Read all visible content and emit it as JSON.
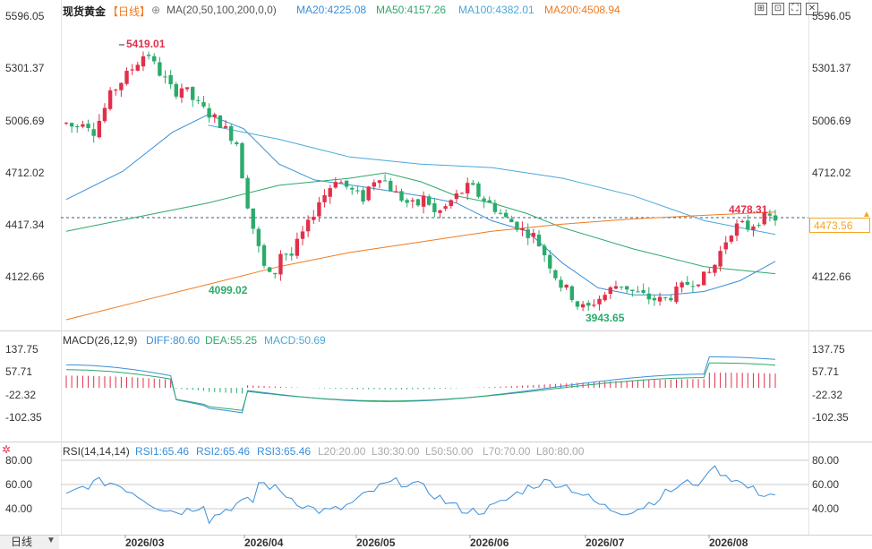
{
  "header": {
    "symbol": "现货黄金",
    "period_label": "【日线】",
    "ma_label": "MA(20,50,100,200,0,0)",
    "ma20": "MA20:4225.08",
    "ma50": "MA50:4157.26",
    "ma100": "MA100:4382.01",
    "ma200": "MA200:4508.94"
  },
  "colors": {
    "up": "#e0304a",
    "down": "#2bab6b",
    "ma20": "#3a8fd9",
    "ma50": "#2ea86b",
    "ma100": "#4aa8d8",
    "ma200": "#f07a1f",
    "macd_dif": "#3a8fd9",
    "macd_dea": "#2ea86b",
    "rsi": "#3a8fd9",
    "last_price": "#f5a623"
  },
  "price_axis": {
    "ticks": [
      "5596.05",
      "5301.37",
      "5006.69",
      "4712.02",
      "4417.34",
      "4122.66"
    ]
  },
  "annotations": {
    "high": "5419.01",
    "low_march": "4099.02",
    "low_june": "3943.65",
    "last_high": "4478.31",
    "last_price": "4473.56"
  },
  "macd": {
    "label": "MACD(26,12,9)",
    "dif": "DIFF:80.60",
    "dea": "DEA:55.25",
    "macd": "MACD:50.69",
    "ticks": [
      "137.75",
      "57.71",
      "-22.32",
      "-102.35"
    ]
  },
  "rsi": {
    "label": "RSI(14,14,14)",
    "rsi1": "RSI1:65.46",
    "rsi2": "RSI2:65.46",
    "rsi3": "RSI3:65.46",
    "l20": "L20:20.00",
    "l30": "L30:30.00",
    "l50": "L50:50.00",
    "l70": "L70:70.00",
    "l80": "L80:80.00",
    "ticks": [
      "80.00",
      "60.00",
      "40.00"
    ]
  },
  "x_axis": {
    "labels": [
      "2026/03",
      "2026/04",
      "2026/05",
      "2026/06",
      "2026/07",
      "2026/08"
    ]
  },
  "timeframe": "日线",
  "toolbar_icons": [
    "zoom-icon",
    "expand-icon",
    "fullscreen-icon",
    "close-icon"
  ],
  "chart_data": {
    "type": "candlestick",
    "title": "现货黄金 日线",
    "ylim": [
      3900,
      5596.05
    ],
    "ohlc_path": [
      5010,
      4980,
      5040,
      4960,
      5060,
      5180,
      5240,
      5300,
      5360,
      5420,
      5320,
      5260,
      5180,
      5220,
      5150,
      5100,
      5060,
      5020,
      4960,
      4900,
      4600,
      4380,
      4200,
      4120,
      4300,
      4250,
      4360,
      4440,
      4560,
      4620,
      4700,
      4660,
      4620,
      4580,
      4680,
      4720,
      4650,
      4600,
      4560,
      4540,
      4600,
      4500,
      4520,
      4580,
      4620,
      4660,
      4600,
      4560,
      4520,
      4470,
      4440,
      4400,
      4380,
      4300,
      4200,
      4100,
      4060,
      3980,
      3960,
      4010,
      4040,
      4090,
      4100,
      4060,
      4040,
      4020,
      4010,
      4020,
      4060,
      4100,
      4120,
      4140,
      4180,
      4300,
      4400,
      4440,
      4420,
      4460,
      4478,
      4473
    ]
  }
}
